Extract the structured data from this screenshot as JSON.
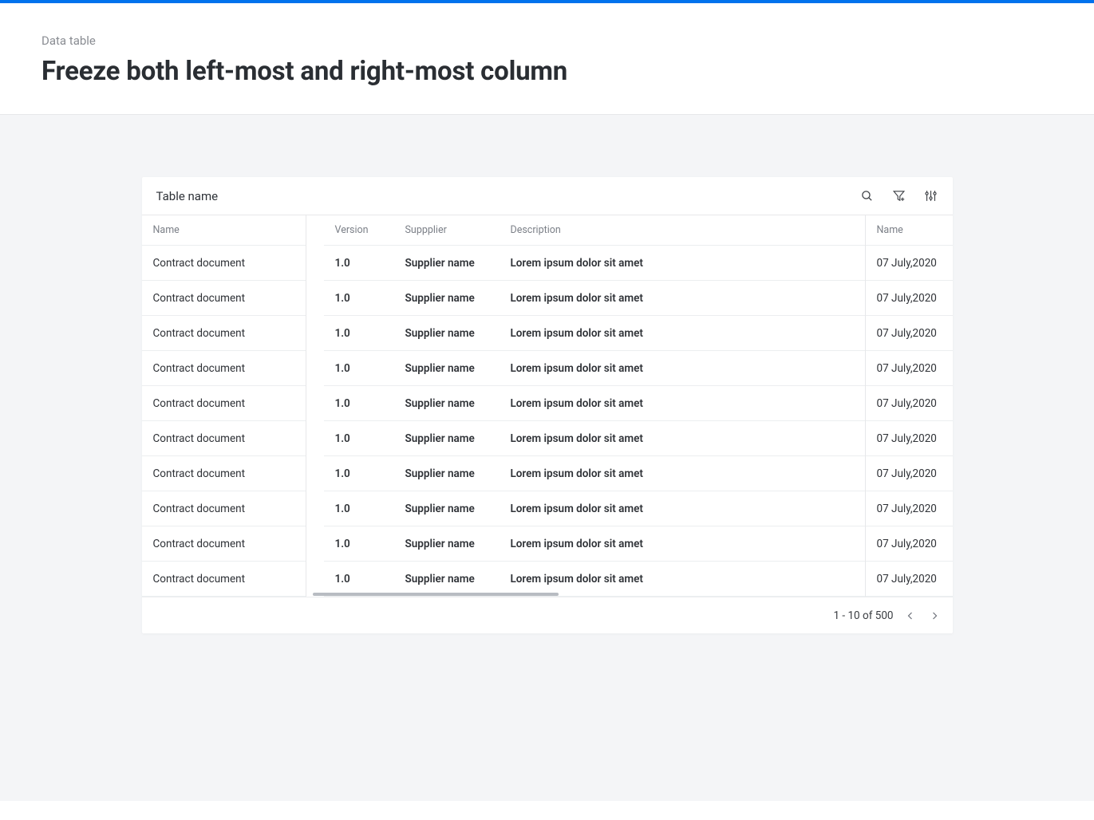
{
  "breadcrumb": "Data table",
  "page_title": "Freeze both left-most and right-most column",
  "card": {
    "title": "Table name"
  },
  "columns": {
    "left": "Name",
    "scroll": [
      "Version",
      "Suppplier",
      "Description"
    ],
    "right": "Name"
  },
  "rows": [
    {
      "name": "Contract document",
      "version": "1.0",
      "supplier": "Supplier name",
      "description": "Lorem ipsum dolor sit amet",
      "date": "07 July,2020"
    },
    {
      "name": "Contract document",
      "version": "1.0",
      "supplier": "Supplier name",
      "description": "Lorem ipsum dolor sit amet",
      "date": "07 July,2020"
    },
    {
      "name": "Contract document",
      "version": "1.0",
      "supplier": "Supplier name",
      "description": "Lorem ipsum dolor sit amet",
      "date": "07 July,2020"
    },
    {
      "name": "Contract document",
      "version": "1.0",
      "supplier": "Supplier name",
      "description": "Lorem ipsum dolor sit amet",
      "date": "07 July,2020"
    },
    {
      "name": "Contract document",
      "version": "1.0",
      "supplier": "Supplier name",
      "description": "Lorem ipsum dolor sit amet",
      "date": "07 July,2020"
    },
    {
      "name": "Contract document",
      "version": "1.0",
      "supplier": "Supplier name",
      "description": "Lorem ipsum dolor sit amet",
      "date": "07 July,2020"
    },
    {
      "name": "Contract document",
      "version": "1.0",
      "supplier": "Supplier name",
      "description": "Lorem ipsum dolor sit amet",
      "date": "07 July,2020"
    },
    {
      "name": "Contract document",
      "version": "1.0",
      "supplier": "Supplier name",
      "description": "Lorem ipsum dolor sit amet",
      "date": "07 July,2020"
    },
    {
      "name": "Contract document",
      "version": "1.0",
      "supplier": "Supplier name",
      "description": "Lorem ipsum dolor sit amet",
      "date": "07 July,2020"
    },
    {
      "name": "Contract document",
      "version": "1.0",
      "supplier": "Supplier name",
      "description": "Lorem ipsum dolor sit amet",
      "date": "07 July,2020"
    }
  ],
  "pagination": {
    "label": "1 - 10 of 500"
  },
  "colors": {
    "accent_bar": "#0072ed",
    "page_bg": "#f4f5f7",
    "border": "#e7e8ea",
    "text_muted": "#7c8088",
    "text": "#2f3237"
  }
}
